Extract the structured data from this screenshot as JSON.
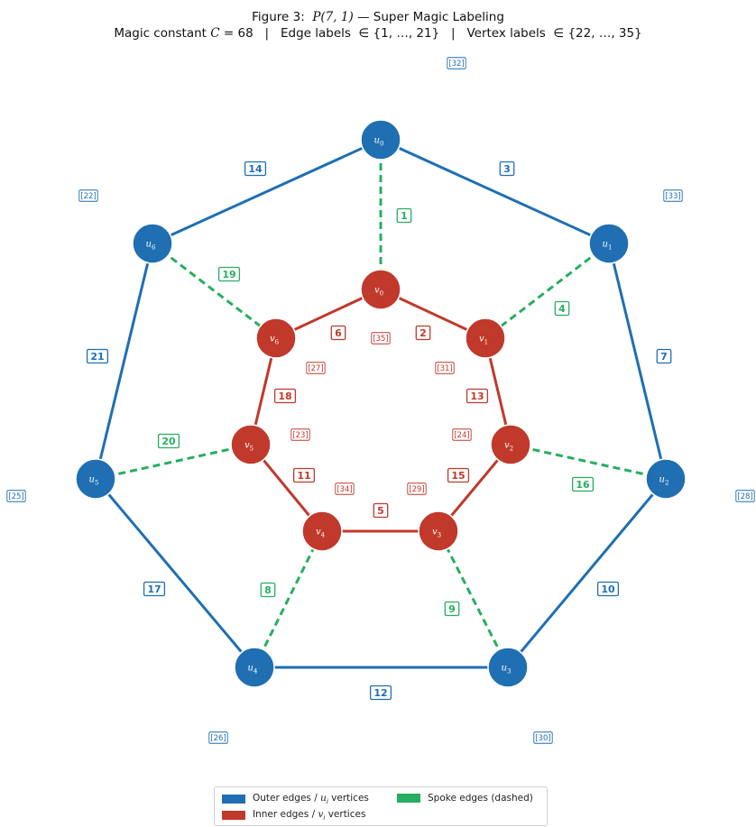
{
  "figure": {
    "title_prefix": "Figure 3:  ",
    "title_math": "P(7, 1)",
    "title_suffix": " — Super Magic Labeling",
    "subtitle_prefix": "Magic constant ",
    "subtitle_math": "C",
    "subtitle_rest": " = 68   |   Edge labels  ∈ {1, …, 21}   |   Vertex labels  ∈ {22, …, 35}"
  },
  "colors": {
    "outer": "#1f6fb2",
    "inner": "#c0392b",
    "spoke": "#27ae60"
  },
  "outer_vertices": [
    {
      "name": "u",
      "sub": "0",
      "label": "32"
    },
    {
      "name": "u",
      "sub": "1",
      "label": "33"
    },
    {
      "name": "u",
      "sub": "2",
      "label": "28"
    },
    {
      "name": "u",
      "sub": "3",
      "label": "30"
    },
    {
      "name": "u",
      "sub": "4",
      "label": "26"
    },
    {
      "name": "u",
      "sub": "5",
      "label": "25"
    },
    {
      "name": "u",
      "sub": "6",
      "label": "22"
    }
  ],
  "inner_vertices": [
    {
      "name": "v",
      "sub": "0",
      "label": "35"
    },
    {
      "name": "v",
      "sub": "1",
      "label": "31"
    },
    {
      "name": "v",
      "sub": "2",
      "label": "24"
    },
    {
      "name": "v",
      "sub": "3",
      "label": "29"
    },
    {
      "name": "v",
      "sub": "4",
      "label": "34"
    },
    {
      "name": "v",
      "sub": "5",
      "label": "23"
    },
    {
      "name": "v",
      "sub": "6",
      "label": "27"
    }
  ],
  "outer_edges": [
    {
      "from": 0,
      "to": 1,
      "label": "3"
    },
    {
      "from": 1,
      "to": 2,
      "label": "7"
    },
    {
      "from": 2,
      "to": 3,
      "label": "10"
    },
    {
      "from": 3,
      "to": 4,
      "label": "12"
    },
    {
      "from": 4,
      "to": 5,
      "label": "17"
    },
    {
      "from": 5,
      "to": 6,
      "label": "21"
    },
    {
      "from": 6,
      "to": 0,
      "label": "14"
    }
  ],
  "inner_edges": [
    {
      "from": 0,
      "to": 1,
      "label": "2"
    },
    {
      "from": 1,
      "to": 2,
      "label": "13"
    },
    {
      "from": 2,
      "to": 3,
      "label": "15"
    },
    {
      "from": 3,
      "to": 4,
      "label": "5"
    },
    {
      "from": 4,
      "to": 5,
      "label": "11"
    },
    {
      "from": 5,
      "to": 6,
      "label": "18"
    },
    {
      "from": 6,
      "to": 0,
      "label": "6"
    }
  ],
  "spoke_edges": [
    {
      "index": 0,
      "label": "1"
    },
    {
      "index": 1,
      "label": "4"
    },
    {
      "index": 2,
      "label": "16"
    },
    {
      "index": 3,
      "label": "9"
    },
    {
      "index": 4,
      "label": "8"
    },
    {
      "index": 5,
      "label": "20"
    },
    {
      "index": 6,
      "label": "19"
    }
  ],
  "legend": {
    "outer_text": "Outer edges / ",
    "outer_math": "u",
    "outer_sub": "i",
    "outer_tail": " vertices",
    "inner_text": "Inner edges / ",
    "inner_math": "v",
    "inner_sub": "i",
    "inner_tail": " vertices",
    "spoke_text": "Spoke edges (dashed)"
  }
}
